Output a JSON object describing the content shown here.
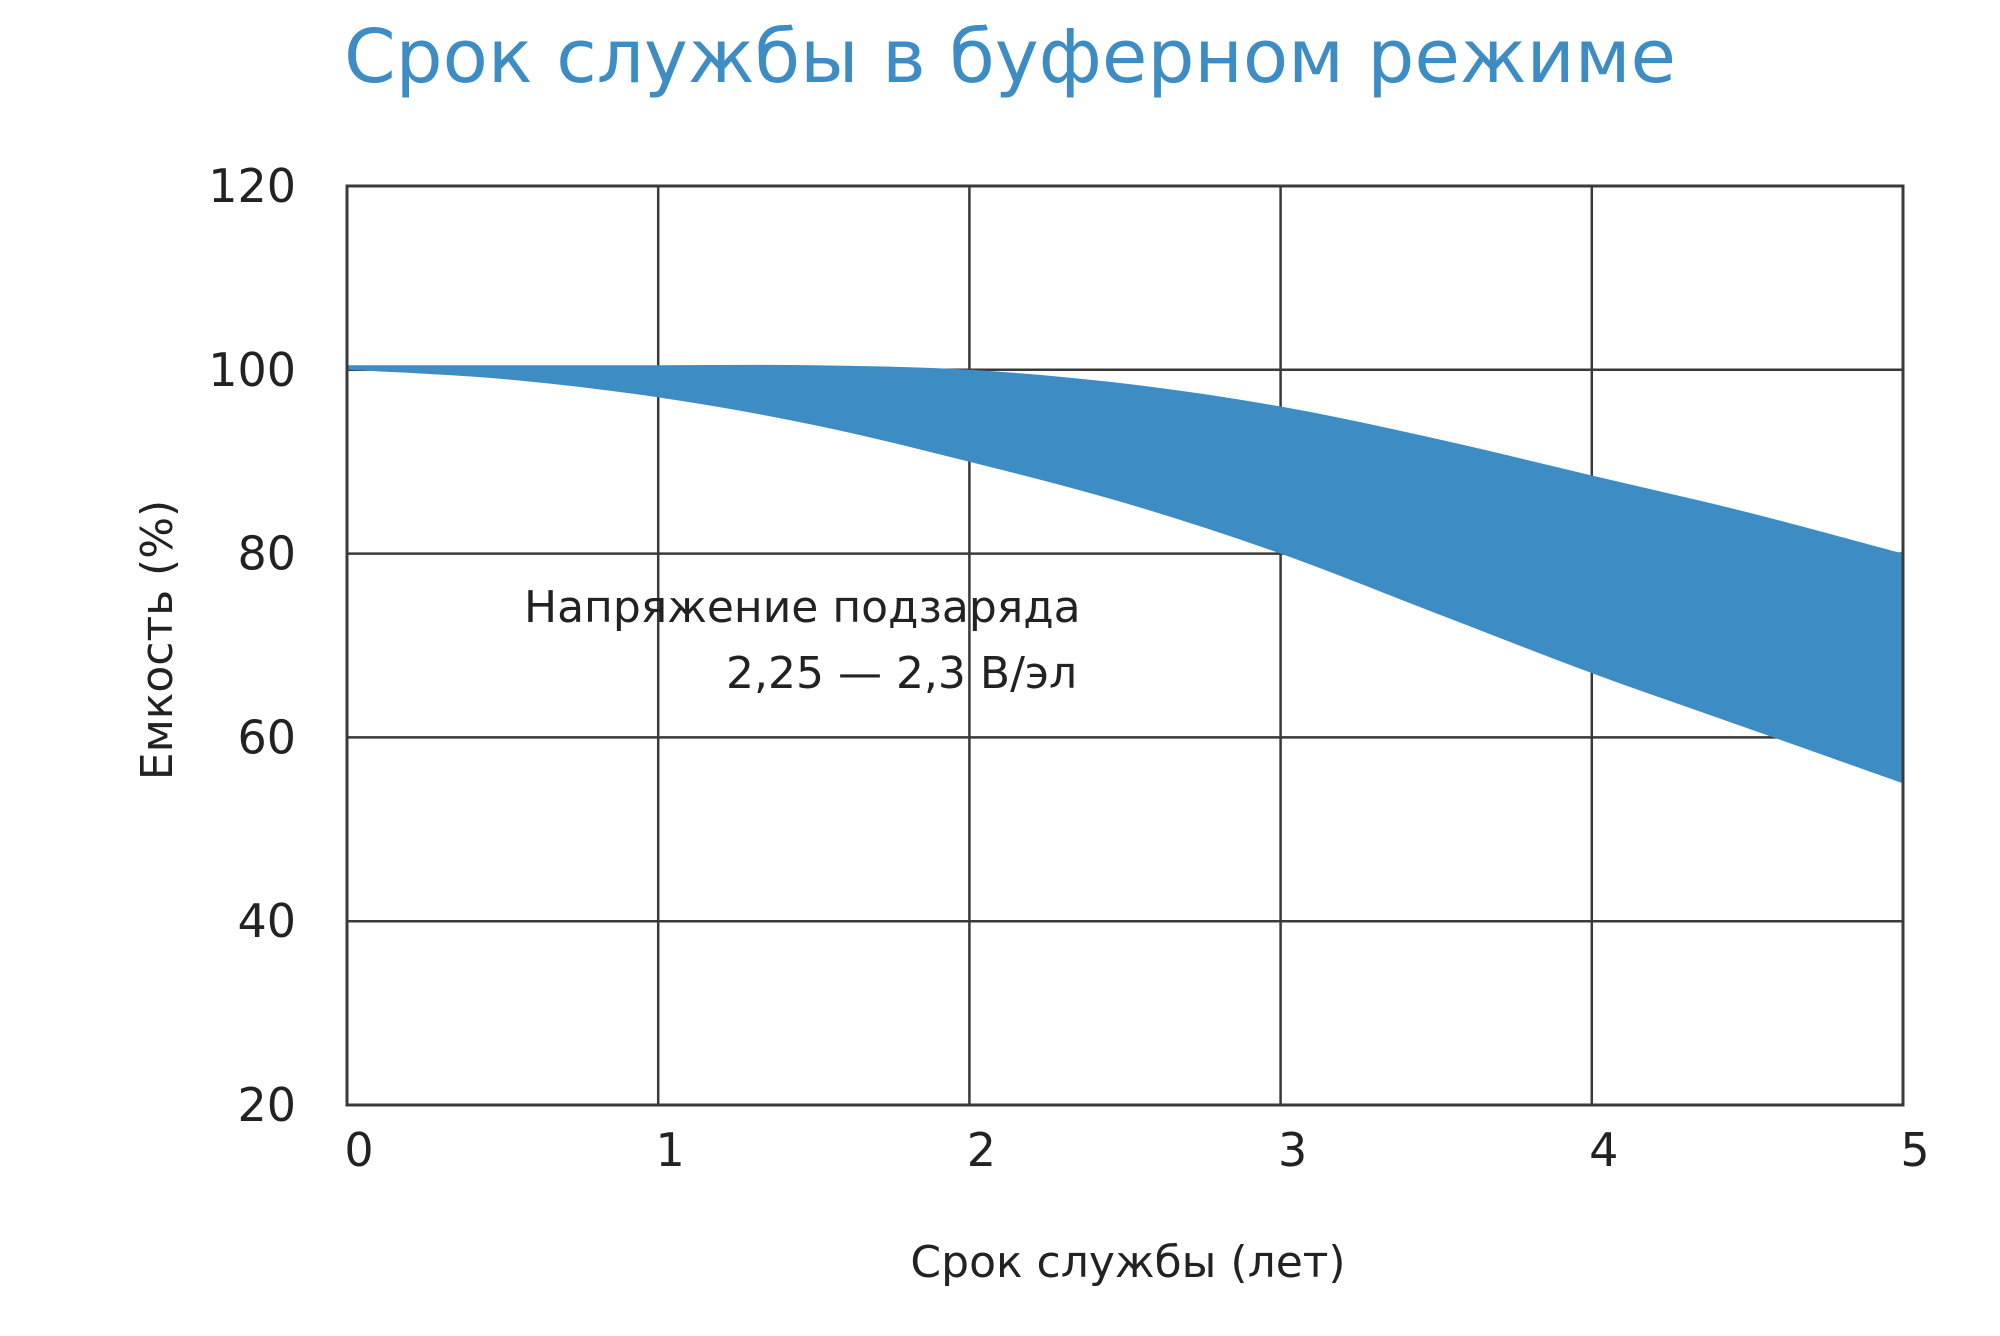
{
  "chart_data": {
    "type": "area",
    "title": "Срок службы в буферном режиме",
    "xlabel": "Срок службы (лет)",
    "ylabel": "Емкость (%)",
    "xlim": [
      0,
      5
    ],
    "ylim": [
      20,
      120
    ],
    "x_ticks": [
      "0",
      "1",
      "2",
      "3",
      "4",
      "5"
    ],
    "y_ticks": [
      "20",
      "40",
      "60",
      "80",
      "100",
      "120"
    ],
    "grid": true,
    "color": "#3d8dc4",
    "annotation": [
      "Напряжение подзаряда",
      "2,25 — 2,3 В/эл"
    ],
    "band": {
      "x": [
        0,
        0.5,
        1,
        1.5,
        2,
        2.5,
        3,
        3.5,
        4,
        4.5,
        5
      ],
      "upper": [
        100.5,
        100.5,
        100.5,
        100.5,
        100,
        98.5,
        96,
        92.5,
        88.5,
        84.5,
        80
      ],
      "lower": [
        100,
        99,
        97,
        94,
        90,
        85.5,
        80,
        73.5,
        67,
        61,
        55
      ]
    }
  }
}
